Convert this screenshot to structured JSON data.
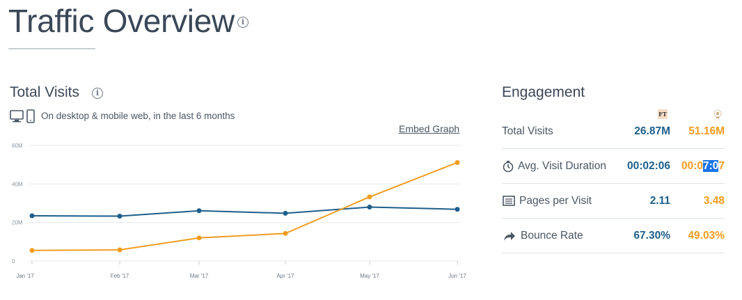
{
  "header": {
    "title": "Traffic Overview",
    "info_icon": "info-icon"
  },
  "total_visits": {
    "title": "Total Visits",
    "info_icon": "info-icon",
    "subtitle": "On desktop & mobile web, in the last 6 months",
    "embed_label": "Embed Graph",
    "device_icons": [
      "desktop-icon",
      "mobile-icon"
    ]
  },
  "chart_data": {
    "type": "line",
    "categories": [
      "Jan '17",
      "Feb '17",
      "Mar '17",
      "Apr '17",
      "May '17",
      "Jun '17"
    ],
    "y_ticks": [
      "0",
      "20M",
      "40M",
      "60M"
    ],
    "ylim": [
      0,
      60000000
    ],
    "grid": true,
    "series": [
      {
        "color": "#1d5e8c",
        "values": [
          23500000,
          23300000,
          26100000,
          24800000,
          28000000,
          26870000
        ]
      },
      {
        "color": "#f29c1f",
        "values": [
          5500000,
          5800000,
          12000000,
          14300000,
          33300000,
          51160000
        ]
      }
    ]
  },
  "engagement": {
    "title": "Engagement",
    "site_a_logo": "ft-logo",
    "site_b_logo": "site-logo",
    "colors": {
      "site_a": "#1d5e8c",
      "site_b": "#f29c1f"
    },
    "rows": [
      {
        "label": "Total Visits",
        "icon": "",
        "value_a": "26.87M",
        "value_b": "51.16M"
      },
      {
        "label": "Avg. Visit Duration",
        "icon": "stopwatch-icon",
        "value_a": "00:02:06",
        "value_b_prefix": "00:0",
        "value_b_highlight": "7:0",
        "value_b_suffix": "7"
      },
      {
        "label": "Pages per Visit",
        "icon": "pages-icon",
        "value_a": "2.11",
        "value_b": "3.48"
      },
      {
        "label": "Bounce Rate",
        "icon": "share-arrow-icon",
        "value_a": "67.30%",
        "value_b": "49.03%"
      }
    ]
  }
}
